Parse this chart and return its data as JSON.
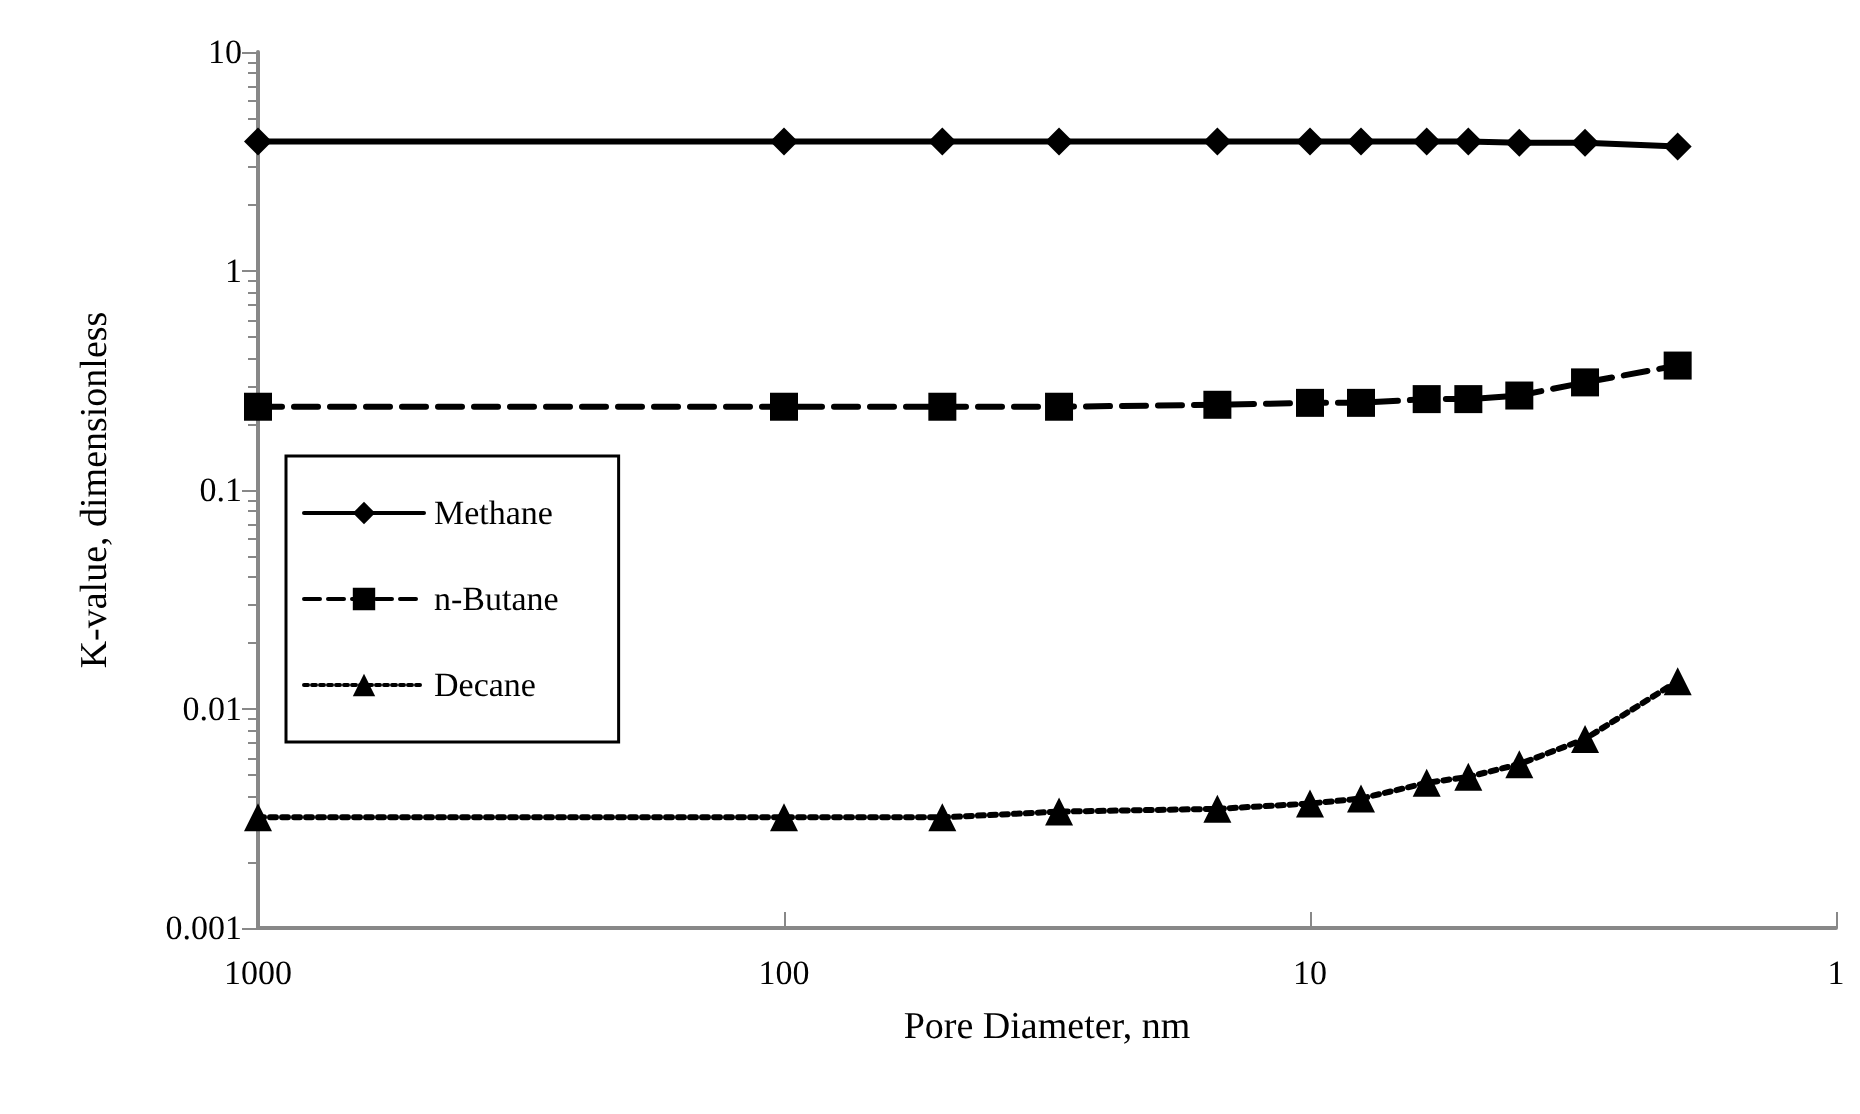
{
  "chart_data": {
    "type": "line",
    "xlabel": "Pore Diameter, nm",
    "ylabel": "K-value, dimensionless",
    "x": [
      1000,
      100,
      50,
      30,
      15,
      10,
      8,
      6,
      5,
      4,
      3,
      2
    ],
    "series": [
      {
        "name": "Methane",
        "color": "#000000",
        "marker": "diamond",
        "line_style": "solid",
        "values": [
          3.9,
          3.9,
          3.9,
          3.9,
          3.9,
          3.9,
          3.9,
          3.9,
          3.9,
          3.85,
          3.85,
          3.7
        ]
      },
      {
        "name": "n-Butane",
        "color": "#000000",
        "marker": "square",
        "line_style": "dashed",
        "values": [
          0.24,
          0.24,
          0.24,
          0.24,
          0.245,
          0.25,
          0.25,
          0.26,
          0.26,
          0.27,
          0.31,
          0.37
        ]
      },
      {
        "name": "Decane",
        "color": "#000000",
        "marker": "triangle",
        "line_style": "dotted",
        "values": [
          0.0032,
          0.0032,
          0.0032,
          0.0034,
          0.0035,
          0.0037,
          0.0039,
          0.0046,
          0.0049,
          0.0056,
          0.0073,
          0.0134
        ]
      }
    ],
    "log": "xy",
    "xlim": [
      1000,
      1
    ],
    "ylim": [
      0.001,
      10
    ],
    "xticks": [
      1000,
      100,
      10,
      1
    ],
    "yticks": [
      0.001,
      0.01,
      0.1,
      1,
      10
    ],
    "grid": false,
    "legend": "left"
  }
}
